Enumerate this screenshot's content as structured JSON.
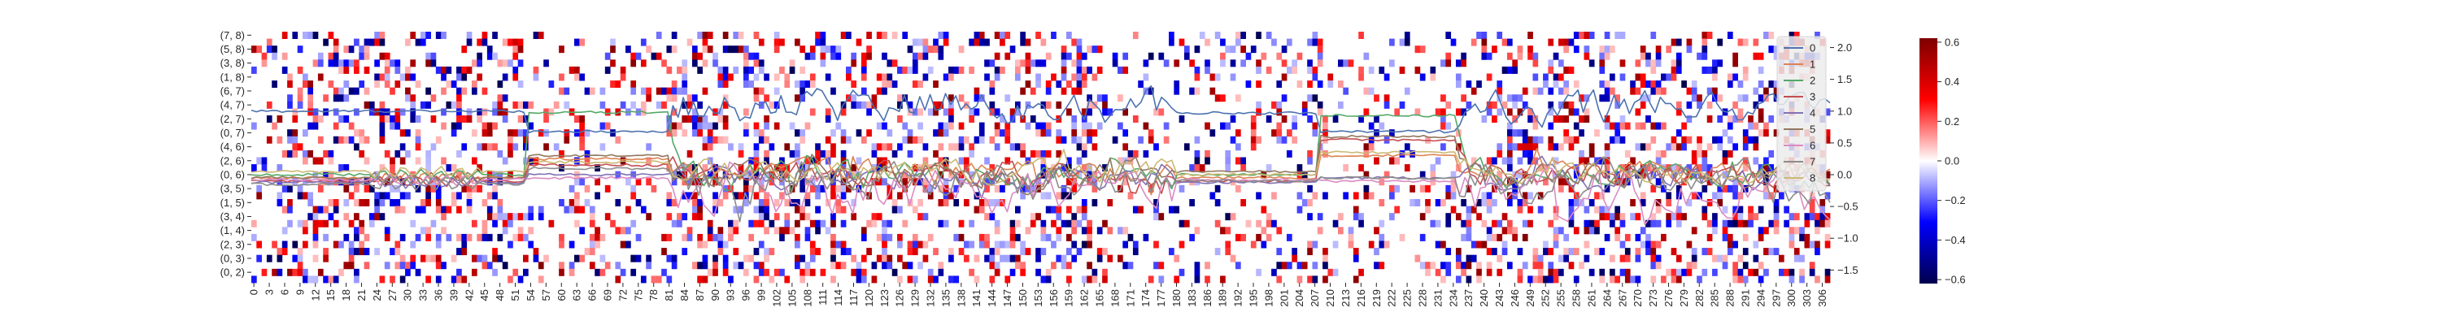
{
  "chart_data": [
    {
      "type": "heatmap",
      "title": "",
      "xlabel": "",
      "ylabel": "",
      "y_tick_labels": [
        "(7, 8)",
        "(5, 8)",
        "(3, 8)",
        "(1, 8)",
        "(6, 7)",
        "(4, 7)",
        "(2, 7)",
        "(0, 7)",
        "(4, 6)",
        "(2, 6)",
        "(0, 6)",
        "(3, 5)",
        "(1, 5)",
        "(3, 4)",
        "(1, 4)",
        "(2, 3)",
        "(0, 3)",
        "(0, 2)"
      ],
      "x_tick_labels": [
        "0",
        "3",
        "6",
        "9",
        "12",
        "15",
        "18",
        "21",
        "24",
        "27",
        "30",
        "33",
        "36",
        "39",
        "42",
        "45",
        "48",
        "51",
        "54",
        "57",
        "60",
        "63",
        "66",
        "69",
        "72",
        "75",
        "78",
        "81",
        "84",
        "87",
        "90",
        "93",
        "96",
        "99",
        "102",
        "105",
        "108",
        "111",
        "114",
        "117",
        "120",
        "123",
        "126",
        "129",
        "132",
        "135",
        "138",
        "141",
        "144",
        "147",
        "150",
        "153",
        "156",
        "159",
        "162",
        "165",
        "168",
        "171",
        "174",
        "177",
        "180",
        "183",
        "186",
        "189",
        "192",
        "195",
        "198",
        "201",
        "204",
        "207",
        "210",
        "213",
        "216",
        "219",
        "222",
        "225",
        "228",
        "231",
        "234",
        "237",
        "240",
        "243",
        "246",
        "249",
        "252",
        "255",
        "258",
        "261",
        "264",
        "267",
        "270",
        "273",
        "276",
        "279",
        "282",
        "285",
        "288",
        "291",
        "294",
        "297",
        "300",
        "303",
        "306"
      ],
      "n_rows": 36,
      "n_cols": 308,
      "colorbar": {
        "ticks": [
          "−0.6",
          "−0.4",
          "−0.2",
          "0.0",
          "0.2",
          "0.4",
          "0.6"
        ],
        "min": -0.62,
        "max": 0.62,
        "cmap": "seismic"
      },
      "colors": {
        "negative": "#00004c",
        "mid": "#ffffff",
        "positive": "#7f0000"
      }
    },
    {
      "type": "line",
      "title": "",
      "xlabel": "",
      "ylabel": "",
      "y_tick_labels": [
        "−1.5",
        "−1.0",
        "−0.5",
        "0.0",
        "0.5",
        "1.0",
        "1.5",
        "2.0"
      ],
      "ylim": [
        -1.7,
        2.25
      ],
      "x_range": [
        0,
        307
      ],
      "legend": {
        "placement": "right",
        "entries": [
          "0",
          "1",
          "2",
          "3",
          "4",
          "5",
          "6",
          "7",
          "8"
        ]
      },
      "series_colors": [
        "#4c72b0",
        "#dd8452",
        "#55a868",
        "#c44e52",
        "#8172b3",
        "#937860",
        "#da8bc3",
        "#8c8c8c",
        "#ccb974"
      ],
      "series": [
        {
          "name": "0",
          "segments": [
            [
              0,
              53,
              1.0
            ],
            [
              54,
              81,
              0.68
            ],
            [
              180,
              207,
              0.97
            ],
            [
              208,
              234,
              0.68
            ]
          ],
          "osc_amp": 0.45,
          "osc_mean": 0.8
        },
        {
          "name": "1",
          "segments": [
            [
              0,
              53,
              -0.05
            ],
            [
              54,
              81,
              0.25
            ],
            [
              180,
              207,
              -0.05
            ],
            [
              208,
              234,
              0.3
            ]
          ],
          "osc_amp": 0.3,
          "osc_mean": 0.05
        },
        {
          "name": "2",
          "segments": [
            [
              0,
              53,
              0.0
            ],
            [
              54,
              81,
              0.98
            ],
            [
              180,
              207,
              0.0
            ],
            [
              208,
              234,
              0.93
            ]
          ],
          "osc_amp": 0.35,
          "osc_mean": 0.0
        },
        {
          "name": "3",
          "segments": [
            [
              0,
              53,
              -0.1
            ],
            [
              54,
              81,
              0.15
            ],
            [
              180,
              207,
              -0.1
            ],
            [
              208,
              234,
              0.55
            ]
          ],
          "osc_amp": 0.3,
          "osc_mean": 0.0
        },
        {
          "name": "4",
          "segments": [
            [
              0,
              53,
              -0.12
            ],
            [
              54,
              81,
              0.0
            ],
            [
              180,
              207,
              -0.12
            ],
            [
              208,
              234,
              -0.05
            ]
          ],
          "osc_amp": 0.3,
          "osc_mean": -0.05
        },
        {
          "name": "5",
          "segments": [
            [
              0,
              53,
              -0.05
            ],
            [
              54,
              81,
              0.3
            ],
            [
              180,
              207,
              0.05
            ],
            [
              208,
              234,
              0.6
            ]
          ],
          "osc_amp": 0.35,
          "osc_mean": 0.0
        },
        {
          "name": "6",
          "segments": [
            [
              0,
              53,
              -0.08
            ],
            [
              54,
              81,
              -0.05
            ],
            [
              180,
              207,
              -0.08
            ],
            [
              208,
              234,
              -0.1
            ]
          ],
          "osc_amp": 0.55,
          "osc_mean": -0.3
        },
        {
          "name": "7",
          "segments": [
            [
              0,
              53,
              -0.15
            ],
            [
              54,
              81,
              0.1
            ],
            [
              180,
              207,
              -0.1
            ],
            [
              208,
              234,
              -0.05
            ]
          ],
          "osc_amp": 0.5,
          "osc_mean": -0.15
        },
        {
          "name": "8",
          "segments": [
            [
              0,
              53,
              0.05
            ],
            [
              54,
              81,
              0.2
            ],
            [
              180,
              207,
              0.0
            ],
            [
              208,
              234,
              0.35
            ]
          ],
          "osc_amp": 0.3,
          "osc_mean": 0.05
        }
      ]
    }
  ]
}
